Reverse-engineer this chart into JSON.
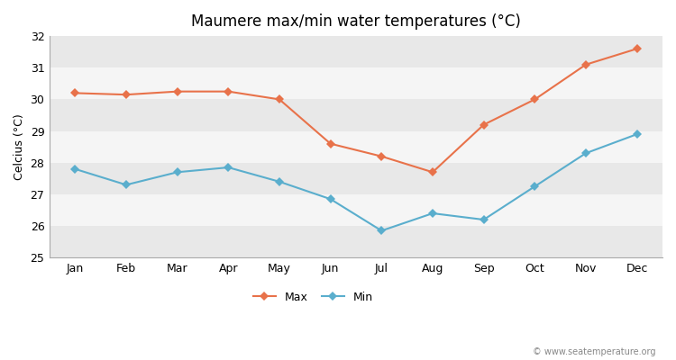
{
  "title": "Maumere max/min water temperatures (°C)",
  "ylabel": "Celcius (°C)",
  "months": [
    "Jan",
    "Feb",
    "Mar",
    "Apr",
    "May",
    "Jun",
    "Jul",
    "Aug",
    "Sep",
    "Oct",
    "Nov",
    "Dec"
  ],
  "max_temps": [
    30.2,
    30.15,
    30.25,
    30.25,
    30.0,
    28.6,
    28.2,
    27.7,
    29.2,
    30.0,
    31.1,
    31.6
  ],
  "min_temps": [
    27.8,
    27.3,
    27.7,
    27.85,
    27.4,
    26.85,
    25.85,
    26.4,
    26.2,
    27.25,
    28.3,
    28.9
  ],
  "max_color": "#e8724a",
  "min_color": "#5aaecd",
  "fig_bg_color": "#ffffff",
  "band_colors": [
    "#e8e8e8",
    "#f5f5f5"
  ],
  "ylim": [
    25,
    32
  ],
  "yticks": [
    25,
    26,
    27,
    28,
    29,
    30,
    31,
    32
  ],
  "marker": "D",
  "marker_size": 5,
  "line_width": 1.5,
  "title_fontsize": 12,
  "label_fontsize": 9,
  "tick_fontsize": 9,
  "watermark": "© www.seatemperature.org"
}
